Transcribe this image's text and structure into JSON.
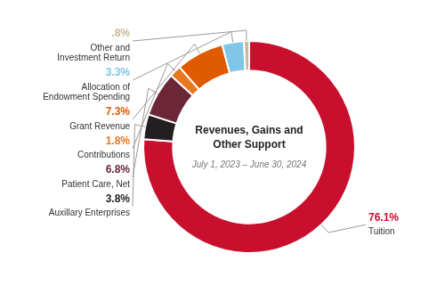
{
  "chart_data": {
    "type": "doughnut",
    "title": "Revenues, Gains and\nOther Support",
    "subtitle": "July 1, 2023 – June 30, 2024",
    "categories": [
      "Tuition",
      "Auxillary Enterprises",
      "Patient Care, Net",
      "Contributions",
      "Grant Revenue",
      "Allocation of\nEndowment Spending",
      "Other and\nInvestment Return"
    ],
    "values": [
      76.1,
      3.8,
      6.8,
      1.8,
      7.3,
      3.3,
      0.8
    ],
    "value_labels": [
      "76.1%",
      "3.8%",
      "6.8%",
      "1.8%",
      "7.3%",
      "3.3%",
      ".8%"
    ],
    "colors": [
      "#C8102E",
      "#231F20",
      "#6B2737",
      "#E87722",
      "#E05A00",
      "#7FC6E8",
      "#C9B99A"
    ],
    "data_labels": true
  }
}
